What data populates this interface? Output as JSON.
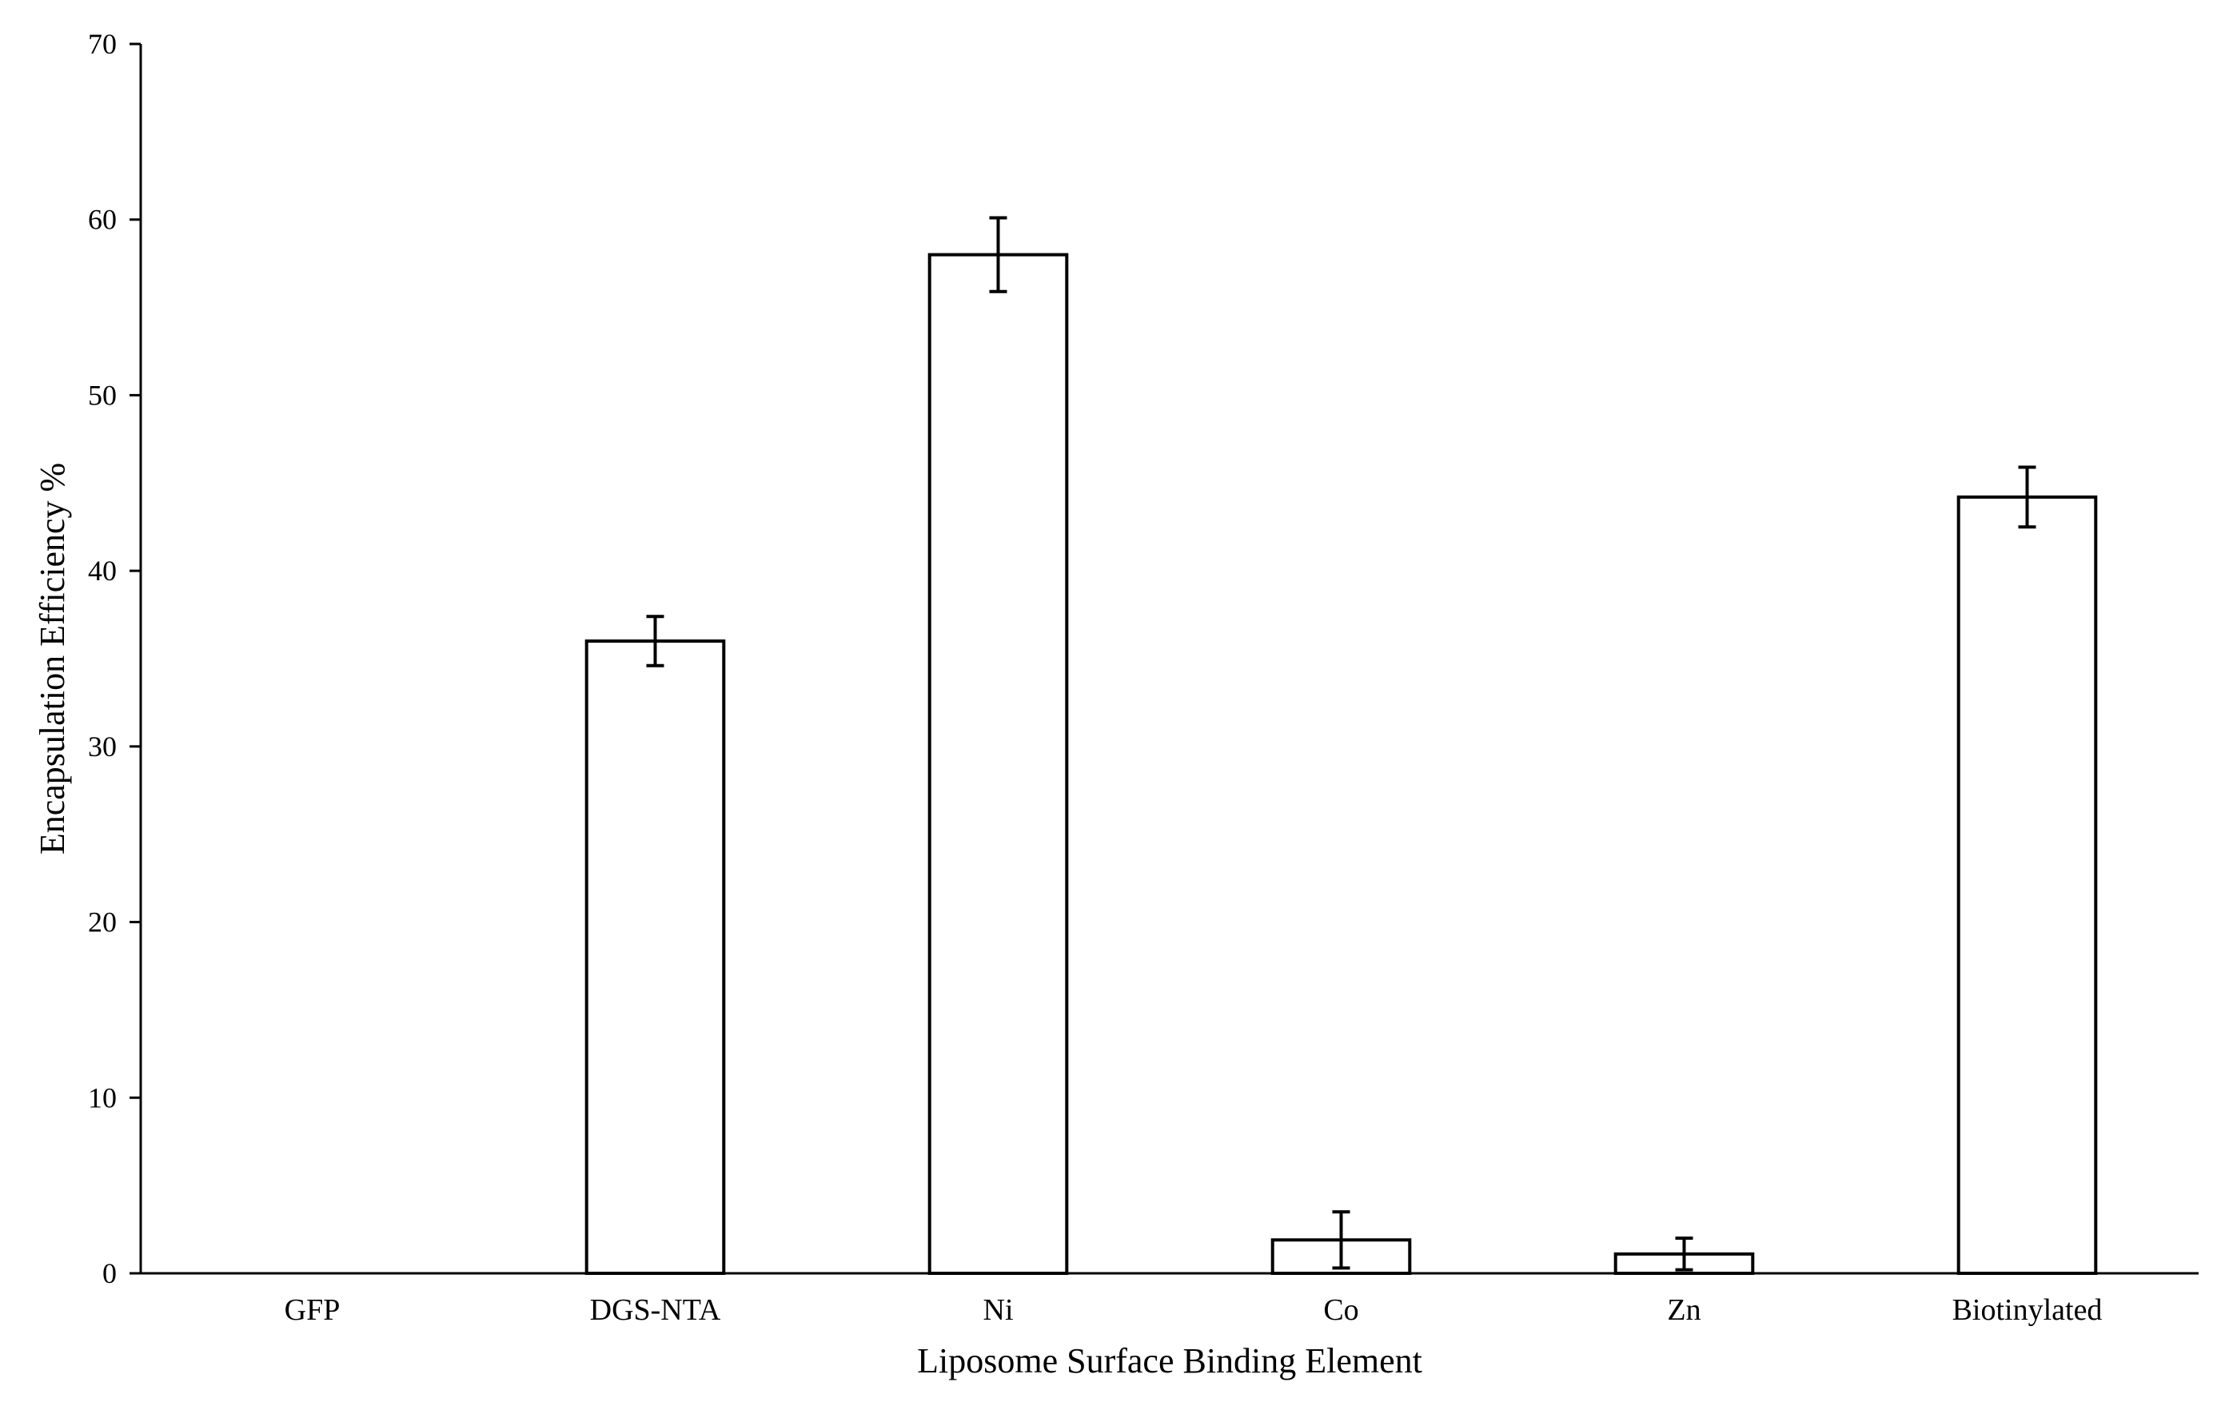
{
  "chart_data": {
    "type": "bar",
    "title": "",
    "xlabel": "Liposome Surface Binding Element",
    "ylabel": "Encapsulation Efficiency %",
    "categories": [
      "GFP",
      "DGS-NTA",
      "Ni",
      "Co",
      "Zn",
      "Biotinylated"
    ],
    "values": [
      0,
      36.0,
      58.0,
      1.9,
      1.1,
      44.2
    ],
    "errors": [
      0,
      1.4,
      2.1,
      1.6,
      0.9,
      1.7
    ],
    "ylim": [
      0,
      70
    ],
    "yticks": [
      "0",
      "10",
      "20",
      "30",
      "40",
      "50",
      "60",
      "70"
    ],
    "grid": false,
    "legend": "none",
    "colors": {
      "bar_fill": "#ffffff",
      "bar_stroke": "#000000",
      "axis": "#000000",
      "error_bar": "#000000"
    }
  }
}
